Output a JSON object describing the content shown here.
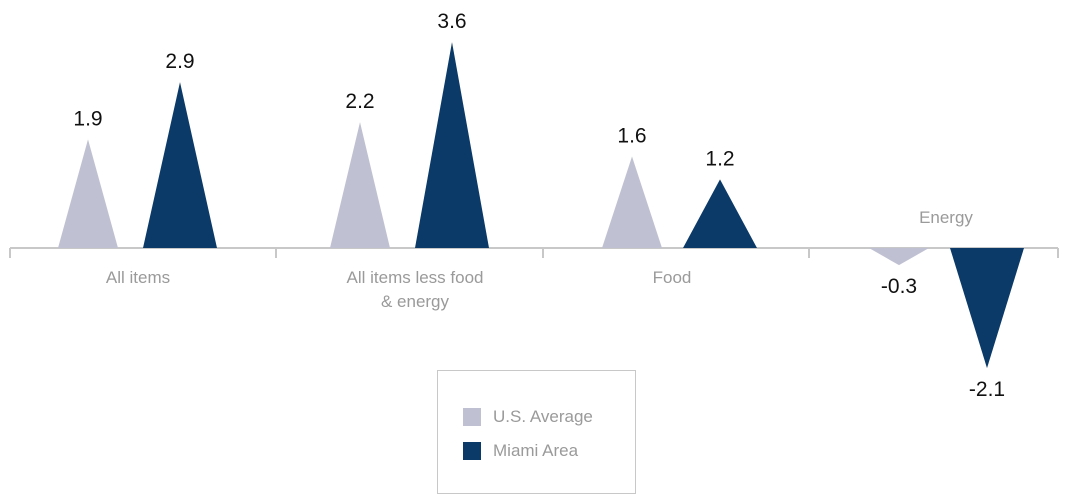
{
  "chart_data": {
    "type": "bar",
    "mark_shape": "triangle",
    "categories": [
      [
        "All items"
      ],
      [
        "All items less food",
        "& energy"
      ],
      [
        "Food"
      ],
      [
        "Energy"
      ]
    ],
    "series": [
      {
        "name": "U.S. Average",
        "values": [
          1.9,
          2.2,
          1.6,
          -0.3
        ],
        "color": "#bfc1d2"
      },
      {
        "name": "Miami Area",
        "values": [
          2.9,
          3.6,
          1.2,
          -2.1
        ],
        "color": "#0b3a68"
      }
    ],
    "value_labels": [
      [
        "1.9",
        "2.2",
        "1.6",
        "-0.3"
      ],
      [
        "2.9",
        "3.6",
        "1.2",
        "-2.1"
      ]
    ],
    "title": "",
    "xlabel": "",
    "ylabel": "",
    "ylim": [
      -2.1,
      3.6
    ],
    "grid": false,
    "legend": "bottom-center"
  },
  "colors": {
    "axis": "#c8c8c8",
    "category_text": "#9a9a9a",
    "value_text": "#111111"
  }
}
